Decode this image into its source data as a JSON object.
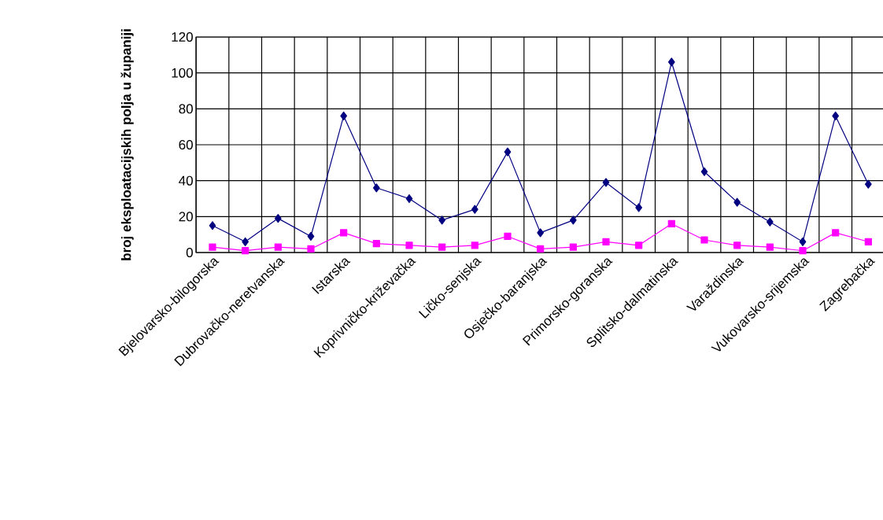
{
  "chart_data": {
    "type": "line",
    "ylabel": "broj eksploatacijskih polja u županiji",
    "categories": [
      "Bjelovarsko-bilogorska",
      null,
      "Dubrovačko-neretvanska",
      null,
      "Istarska",
      null,
      "Koprivničko-križevačka",
      null,
      "Ličko-senjska",
      null,
      "Osječko-baranjska",
      null,
      "Primorsko-goranska",
      null,
      "Splitsko-dalmatinska",
      null,
      "Varaždinska",
      null,
      "Vukovarsko-srijemska",
      null,
      "Zagrebačka"
    ],
    "series": [
      {
        "color": "#000080",
        "marker": "diamond",
        "values": [
          15,
          6,
          19,
          9,
          76,
          36,
          30,
          18,
          24,
          56,
          11,
          18,
          39,
          25,
          106,
          45,
          28,
          17,
          6,
          76,
          38
        ]
      },
      {
        "color": "#ff00ff",
        "marker": "square",
        "values": [
          3,
          1,
          3,
          2,
          11,
          5,
          4,
          3,
          4,
          9,
          2,
          3,
          6,
          4,
          16,
          7,
          4,
          3,
          1,
          11,
          6
        ]
      }
    ],
    "ylim": [
      0,
      120
    ],
    "yticks": [
      0,
      20,
      40,
      60,
      80,
      100,
      120
    ],
    "grid": true
  }
}
